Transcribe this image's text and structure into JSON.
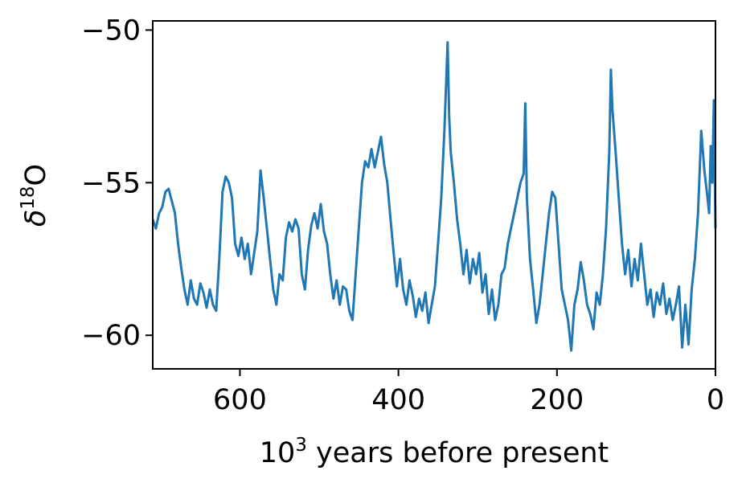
{
  "chart_data": {
    "type": "line",
    "title": "",
    "xlabel": {
      "base": "10",
      "sup": "3",
      "rest": " years before present"
    },
    "ylabel": {
      "prefix": "δ",
      "sup": "18",
      "rest": "O"
    },
    "xlim": [
      710,
      0
    ],
    "ylim": [
      -61.1,
      -49.7
    ],
    "x_ticks": [
      600,
      400,
      200,
      0
    ],
    "x_tick_labels": [
      "600",
      "400",
      "200",
      "0"
    ],
    "y_ticks": [
      -50,
      -55,
      -60
    ],
    "y_tick_labels": [
      "−50",
      "−55",
      "−60"
    ],
    "grid": false,
    "line_color": "#1f77b4",
    "series": [
      {
        "x": [
          710,
          706,
          702,
          698,
          694,
          690,
          686,
          682,
          678,
          674,
          670,
          666,
          662,
          658,
          654,
          650,
          646,
          642,
          638,
          634,
          630,
          626,
          622,
          618,
          614,
          610,
          606,
          602,
          598,
          594,
          590,
          586,
          582,
          578,
          574,
          570,
          566,
          562,
          558,
          554,
          550,
          546,
          542,
          538,
          534,
          530,
          526,
          522,
          518,
          514,
          510,
          506,
          502,
          498,
          494,
          490,
          486,
          482,
          478,
          474,
          470,
          466,
          462,
          458,
          454,
          450,
          446,
          442,
          438,
          434,
          430,
          426,
          422,
          418,
          414,
          410,
          406,
          402,
          398,
          394,
          390,
          386,
          382,
          378,
          374,
          370,
          366,
          362,
          358,
          354,
          350,
          346,
          342,
          338,
          336,
          334,
          330,
          326,
          322,
          318,
          314,
          310,
          306,
          302,
          298,
          294,
          290,
          286,
          282,
          278,
          274,
          270,
          266,
          262,
          258,
          254,
          250,
          246,
          242,
          240,
          238,
          234,
          230,
          226,
          222,
          218,
          214,
          210,
          206,
          202,
          198,
          194,
          190,
          186,
          182,
          178,
          174,
          170,
          166,
          162,
          158,
          154,
          150,
          146,
          142,
          138,
          134,
          132,
          130,
          126,
          122,
          118,
          114,
          110,
          106,
          102,
          98,
          94,
          90,
          86,
          82,
          78,
          74,
          70,
          66,
          62,
          58,
          54,
          50,
          46,
          42,
          38,
          34,
          30,
          26,
          22,
          18,
          14,
          10,
          8,
          6,
          4,
          2,
          0
        ],
        "y": [
          -56.2,
          -56.5,
          -56.0,
          -55.8,
          -55.3,
          -55.2,
          -55.6,
          -56.0,
          -57.0,
          -57.8,
          -58.5,
          -59.0,
          -58.2,
          -58.8,
          -59.0,
          -58.3,
          -58.6,
          -59.1,
          -58.5,
          -59.0,
          -59.2,
          -57.5,
          -55.3,
          -54.8,
          -55.0,
          -55.5,
          -57.0,
          -57.4,
          -56.8,
          -57.5,
          -57.0,
          -58.0,
          -57.3,
          -56.6,
          -54.6,
          -55.5,
          -56.5,
          -57.5,
          -58.5,
          -59.0,
          -58.0,
          -58.2,
          -56.8,
          -56.3,
          -56.6,
          -56.2,
          -56.5,
          -58.0,
          -58.5,
          -57.2,
          -56.4,
          -56.0,
          -56.5,
          -55.7,
          -56.6,
          -57.0,
          -58.0,
          -58.8,
          -58.2,
          -59.0,
          -58.4,
          -58.5,
          -59.2,
          -59.5,
          -58.0,
          -56.5,
          -55.0,
          -54.3,
          -54.5,
          -53.9,
          -54.5,
          -54.0,
          -53.5,
          -54.4,
          -55.0,
          -56.2,
          -57.3,
          -58.4,
          -57.5,
          -58.5,
          -59.0,
          -58.2,
          -58.7,
          -59.4,
          -58.8,
          -59.2,
          -58.6,
          -59.6,
          -59.0,
          -58.4,
          -57.0,
          -55.5,
          -53.3,
          -50.4,
          -52.8,
          -54.0,
          -55.0,
          -56.2,
          -57.0,
          -58.0,
          -57.2,
          -58.3,
          -57.5,
          -58.0,
          -57.3,
          -58.6,
          -58.0,
          -59.3,
          -58.5,
          -59.5,
          -59.0,
          -58.0,
          -57.8,
          -57.0,
          -56.5,
          -56.0,
          -55.5,
          -55.0,
          -54.7,
          -52.4,
          -55.5,
          -57.5,
          -58.5,
          -59.6,
          -59.0,
          -58.0,
          -57.0,
          -56.0,
          -55.3,
          -55.5,
          -57.0,
          -58.5,
          -59.0,
          -59.5,
          -60.5,
          -59.0,
          -58.5,
          -57.6,
          -58.2,
          -59.0,
          -59.3,
          -59.8,
          -58.6,
          -59.0,
          -58.0,
          -56.5,
          -54.0,
          -51.3,
          -52.6,
          -54.0,
          -55.5,
          -57.0,
          -58.0,
          -57.2,
          -58.4,
          -57.5,
          -58.2,
          -57.0,
          -58.0,
          -59.0,
          -58.5,
          -59.4,
          -58.6,
          -59.0,
          -58.3,
          -59.3,
          -58.8,
          -59.5,
          -59.0,
          -58.4,
          -60.4,
          -59.0,
          -60.3,
          -58.5,
          -57.5,
          -56.0,
          -53.3,
          -54.6,
          -55.5,
          -56.0,
          -53.8,
          -55.0,
          -52.3,
          -56.5
        ]
      }
    ]
  }
}
